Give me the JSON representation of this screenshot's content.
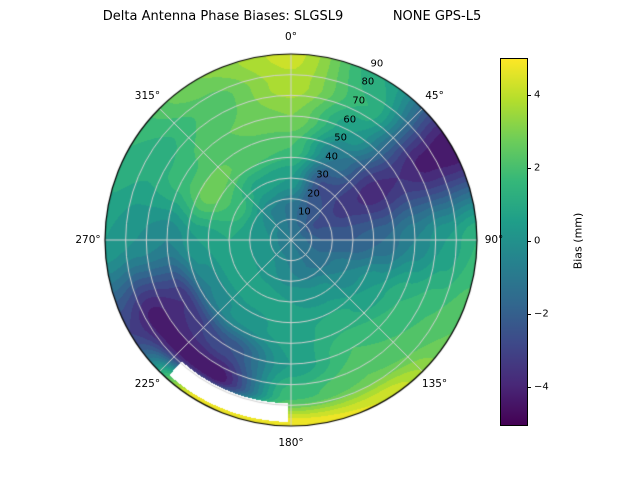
{
  "title": "Delta Antenna Phase Biases: SLGSL9            NONE GPS-L5",
  "chart_data": {
    "type": "heatmap",
    "projection": "polar",
    "title": "Delta Antenna Phase Biases: SLGSL9            NONE GPS-L5",
    "angular_axis": "azimuth (deg, 0 at top, clockwise)",
    "radial_axis": "zenith angle (deg, 0 at center to 90 at edge)",
    "level_step": 0.5,
    "grid_on": true,
    "colorbar": {
      "label": "Bias (mm)",
      "ticks": [
        4,
        2,
        0,
        -2,
        -4
      ],
      "vmin": -5,
      "vmax": 5,
      "position": "right"
    },
    "colormap": "viridis",
    "colormap_stops": [
      "#440154",
      "#482878",
      "#3e4989",
      "#31688e",
      "#26828e",
      "#1f9e89",
      "#35b779",
      "#6dcd59",
      "#b4de2c",
      "#fde725"
    ],
    "grid_line_color": "#d2d2d2",
    "azimuth_labels": [
      {
        "angle": 0,
        "label": "0°"
      },
      {
        "angle": 45,
        "label": "45°"
      },
      {
        "angle": 90,
        "label": "90°"
      },
      {
        "angle": 135,
        "label": "135°"
      },
      {
        "angle": 180,
        "label": "180°"
      },
      {
        "angle": 225,
        "label": "225°"
      },
      {
        "angle": 270,
        "label": "270°"
      },
      {
        "angle": 315,
        "label": "315°"
      }
    ],
    "ring_labels": [
      {
        "zenith": 10,
        "label": "10"
      },
      {
        "zenith": 20,
        "label": "20"
      },
      {
        "zenith": 30,
        "label": "30"
      },
      {
        "zenith": 40,
        "label": "40"
      },
      {
        "zenith": 50,
        "label": "50"
      },
      {
        "zenith": 60,
        "label": "60"
      },
      {
        "zenith": 70,
        "label": "70"
      },
      {
        "zenith": 80,
        "label": "80"
      },
      {
        "zenith": 90,
        "label": "90"
      }
    ],
    "grid": {
      "azimuths": [
        0,
        30,
        60,
        90,
        120,
        150,
        180,
        210,
        240,
        270,
        300,
        330
      ],
      "zeniths": [
        0,
        15,
        30,
        45,
        60,
        75,
        90
      ],
      "bias_mm": [
        [
          -1.0,
          -1.0,
          -1.0,
          -1.0,
          -1.0,
          -1.0,
          -1.0,
          -1.0,
          -1.0,
          -1.0,
          -1.0,
          -1.0
        ],
        [
          -1.2,
          -2.0,
          -2.6,
          -2.0,
          -1.4,
          -1.0,
          -0.5,
          0.0,
          0.3,
          0.3,
          0.0,
          -0.6
        ],
        [
          0.5,
          -2.6,
          -3.2,
          -2.0,
          -0.5,
          0.3,
          0.5,
          0.8,
          1.0,
          1.0,
          1.8,
          0.8
        ],
        [
          2.0,
          -1.0,
          -3.8,
          -1.5,
          0.5,
          1.2,
          0.8,
          0.2,
          -0.5,
          0.5,
          2.8,
          2.4
        ],
        [
          3.0,
          0.5,
          -3.5,
          -0.5,
          1.5,
          2.0,
          0.5,
          -2.5,
          -3.5,
          -0.5,
          1.8,
          2.5
        ],
        [
          3.8,
          1.5,
          -4.2,
          0.5,
          2.0,
          2.5,
          1.8,
          -4.5,
          -4.2,
          0.0,
          1.2,
          2.2
        ],
        [
          4.2,
          1.0,
          -4.5,
          1.5,
          2.5,
          4.5,
          5.0,
          5.0,
          -3.0,
          0.5,
          1.5,
          3.0
        ]
      ]
    },
    "masked_sector": {
      "az_min": 181,
      "az_max": 222,
      "zen_min": 79,
      "zen_max": 88
    }
  }
}
